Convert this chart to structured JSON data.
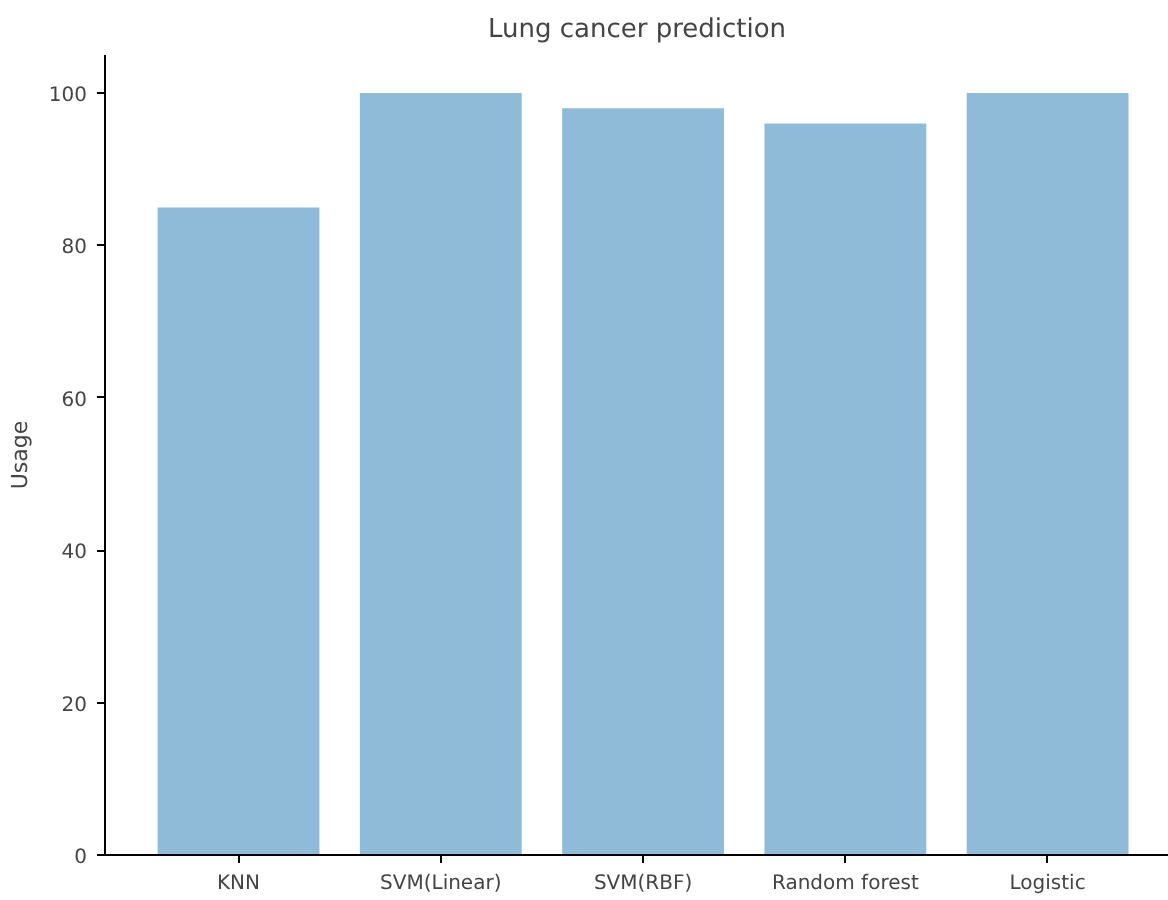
{
  "chart_data": {
    "type": "bar",
    "title": "Lung cancer prediction",
    "ylabel": "Usage",
    "categories": [
      "KNN",
      "SVM(Linear)",
      "SVM(RBF)",
      "Random forest",
      "Logistic"
    ],
    "values": [
      85,
      100,
      98,
      96,
      100
    ],
    "color": "#8fbbd9",
    "ylim": [
      0,
      105
    ],
    "yticks": [
      0,
      20,
      40,
      60,
      80,
      100
    ],
    "grid": false
  }
}
